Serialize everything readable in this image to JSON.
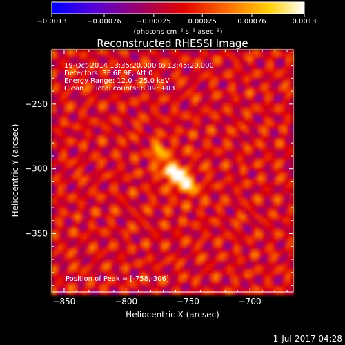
{
  "chart_data": {
    "type": "heatmap",
    "title": "Reconstructed RHESSI Image",
    "xlabel": "Heliocentric X (arcsec)",
    "ylabel": "Heliocentric Y (arcsec)",
    "xlim": [
      -860,
      -665
    ],
    "ylim": [
      -395,
      -208
    ],
    "xticks": [
      -850,
      -800,
      -750,
      -700
    ],
    "xtick_labels": [
      "−850",
      "−800",
      "−750",
      "−700"
    ],
    "yticks": [
      -250,
      -300,
      -350
    ],
    "ytick_labels": [
      "−250",
      "−300",
      "−350"
    ],
    "colorbar": {
      "min": -0.0013,
      "max": 0.0013,
      "ticks": [
        -0.0013,
        -0.00076,
        -0.00025,
        0.00025,
        0.00076,
        0.0013
      ],
      "tick_labels": [
        "−0.0013",
        "−0.00076",
        "−0.00025",
        "0.00025",
        "0.00076",
        "0.0013"
      ],
      "unit_label": "(photons cm⁻² s⁻¹ asec⁻²)",
      "colors": [
        "#0000ff",
        "#5a00d0",
        "#a00060",
        "#e00000",
        "#ff7000",
        "#ffd000",
        "#ffffff"
      ]
    },
    "annotations": [
      "19-Oct-2014 13:35:20.000 to 13:45:20.000",
      "Detectors: 3F 6F 9F, Att 0",
      "Energy Range: 12.0 - 25.0 keV",
      "Clean     Total counts: 8.09E+03"
    ],
    "peak_label": "Position of Peak = [-758,-306]",
    "peak": {
      "x": -758,
      "y": -306
    },
    "secondary_source": {
      "x": -773,
      "y": -286
    }
  },
  "footer_timestamp": "1-Jul-2017 04:28"
}
